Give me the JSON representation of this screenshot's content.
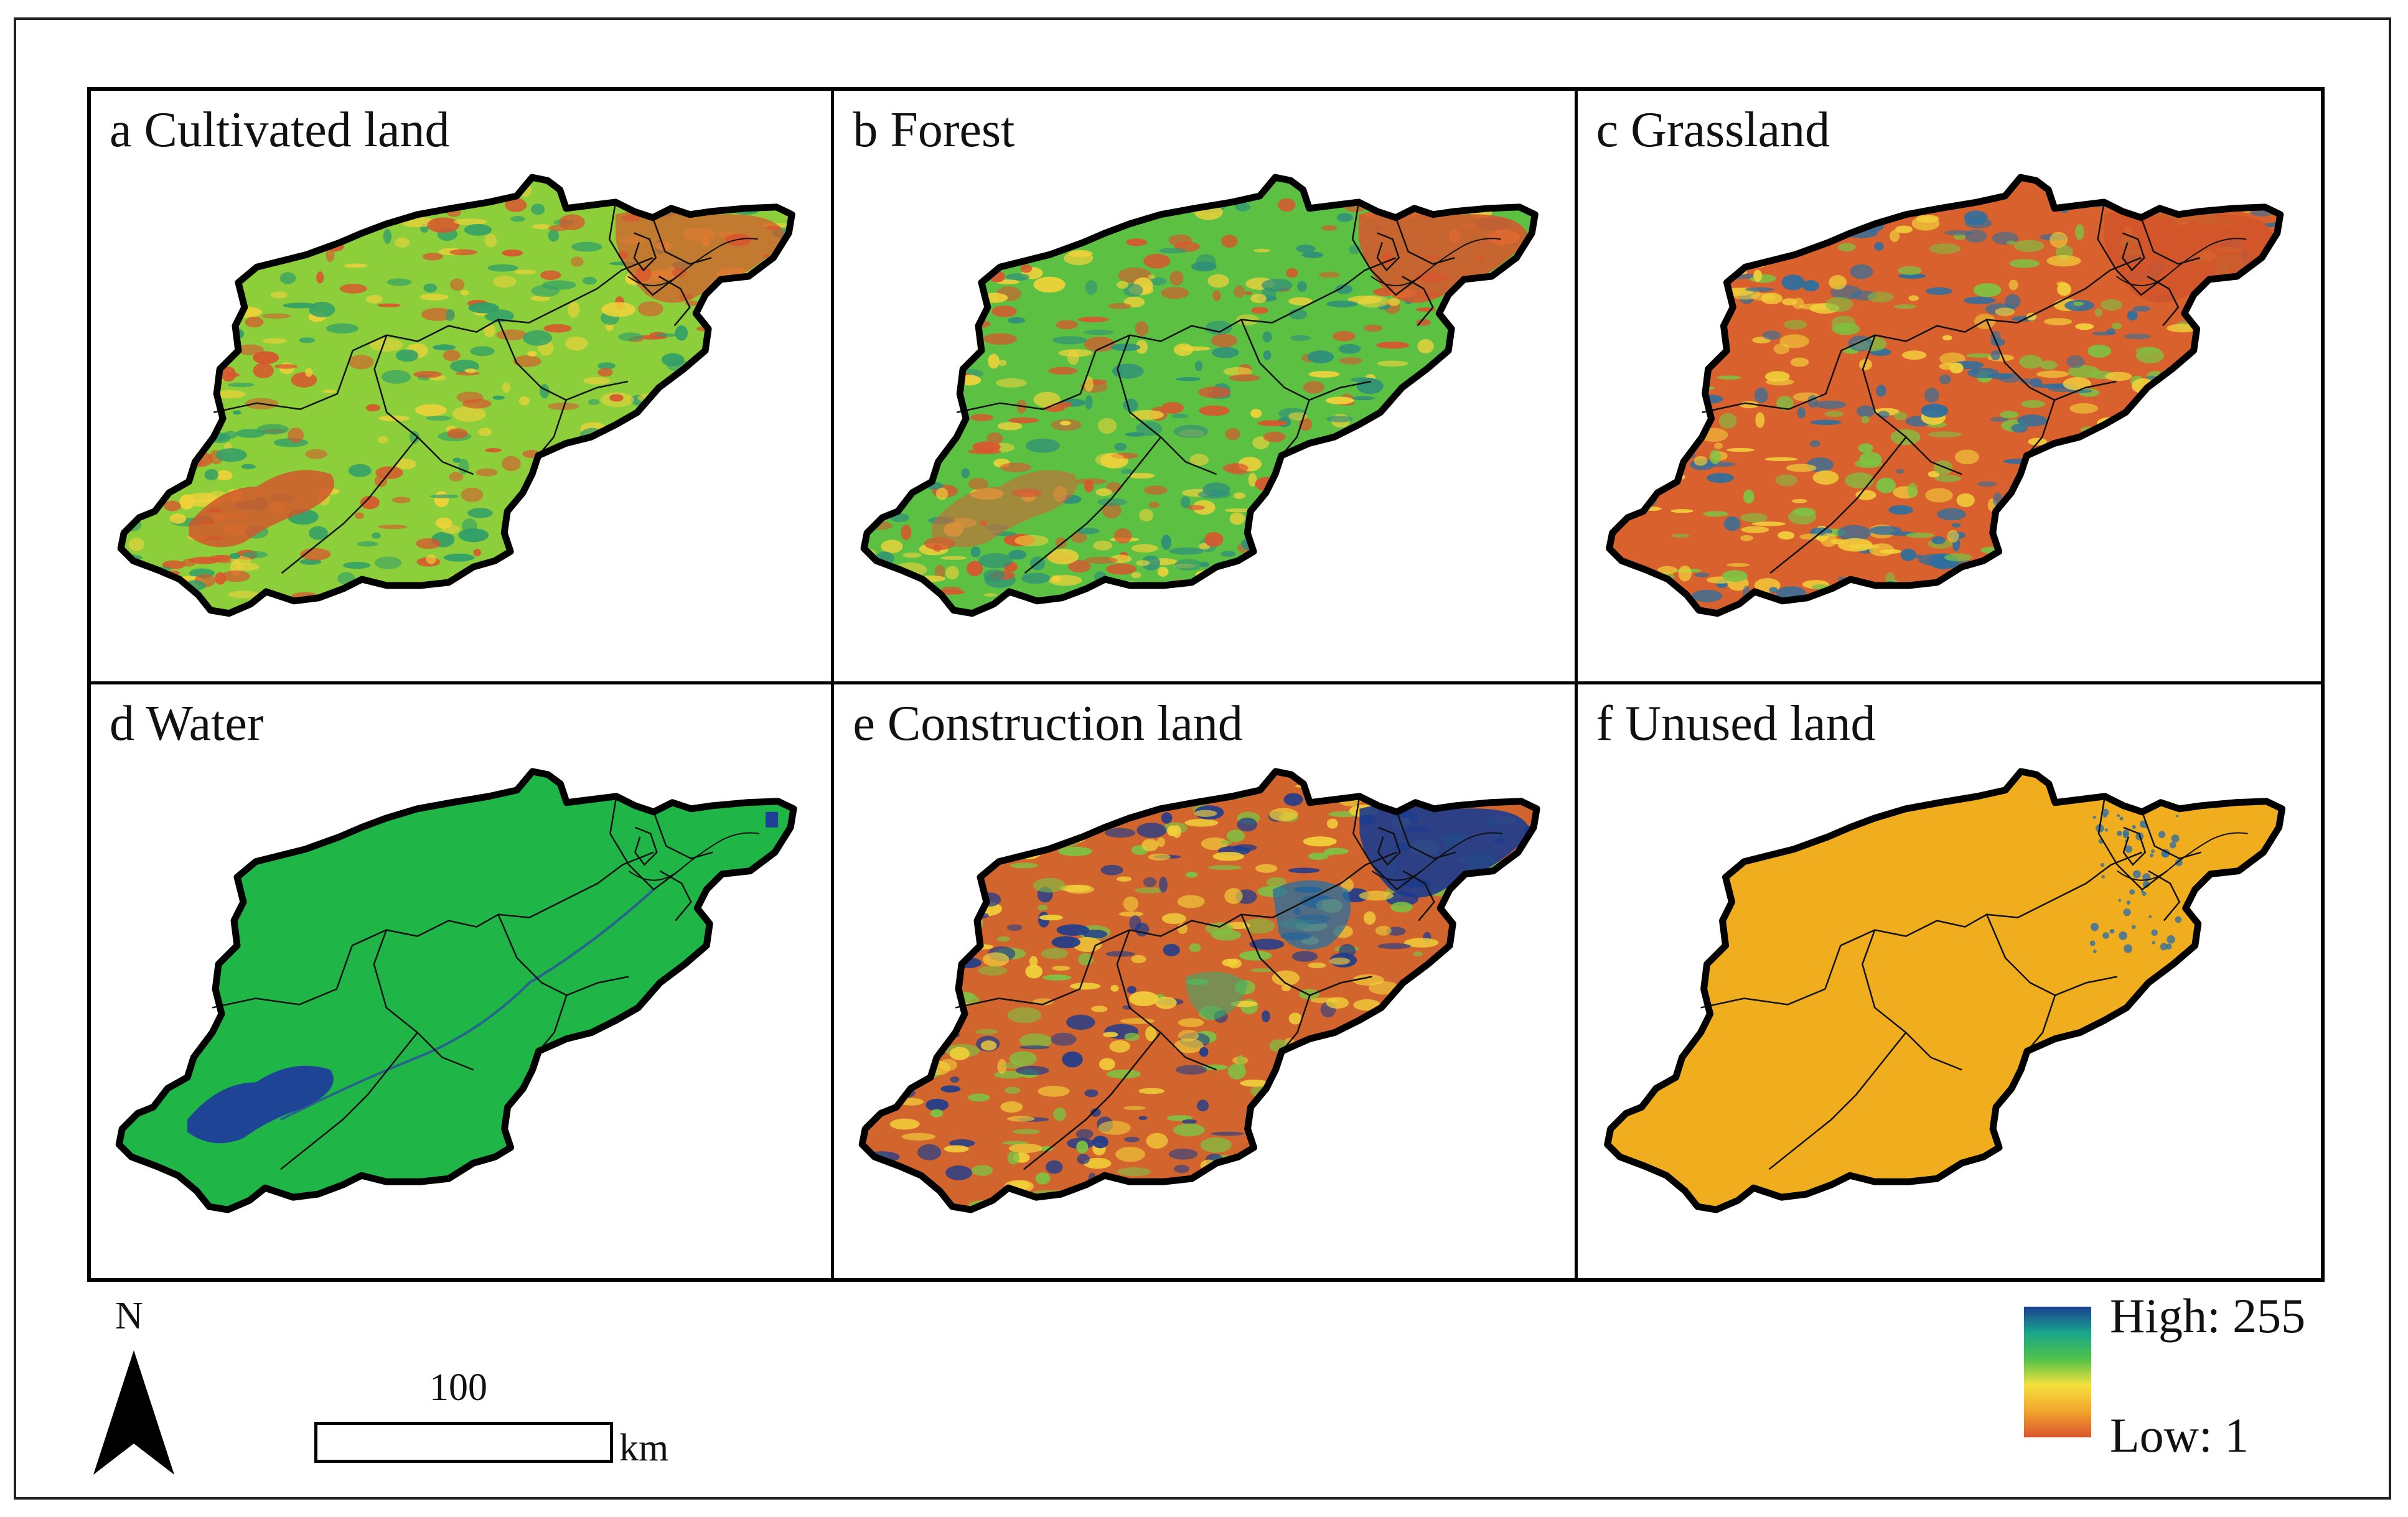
{
  "panels": [
    {
      "id": "a",
      "title": "a Cultivated land",
      "fill_scheme": "mixed-green-yellow-red",
      "base_color": "#8ccf3a",
      "accents": [
        "#d9552e",
        "#f2d23a",
        "#2f9e6a"
      ]
    },
    {
      "id": "b",
      "title": "b Forest",
      "fill_scheme": "mostly-green",
      "base_color": "#5cc043",
      "accents": [
        "#d9552e",
        "#2e8f7a",
        "#f2d23a"
      ]
    },
    {
      "id": "c",
      "title": "c Grassland",
      "fill_scheme": "mostly-red",
      "base_color": "#d9612e",
      "accents": [
        "#7cc443",
        "#2b6fa0",
        "#f2d23a"
      ]
    },
    {
      "id": "d",
      "title": "d Water",
      "fill_scheme": "green-with-blue",
      "base_color": "#1fb547",
      "accents": [
        "#1f3f9a"
      ]
    },
    {
      "id": "e",
      "title": "e Construction land",
      "fill_scheme": "red-with-blue-urban",
      "base_color": "#d2652e",
      "accents": [
        "#1b3b8f",
        "#f2d23a",
        "#7cc443"
      ]
    },
    {
      "id": "f",
      "title": "f Unused land",
      "fill_scheme": "uniform-orange",
      "base_color": "#f0ae1e",
      "accents": [
        "#2f6fa5"
      ]
    }
  ],
  "north_arrow": {
    "label": "N",
    "icon": "north-arrow-icon"
  },
  "scale_bar": {
    "value": "100",
    "unit": "km"
  },
  "legend": {
    "high_label": "High: 255",
    "low_label": "Low: 1",
    "colors": [
      "#1a3f8f",
      "#18a68c",
      "#4fc24a",
      "#f5e13c",
      "#f2a52d",
      "#d9552e"
    ]
  }
}
